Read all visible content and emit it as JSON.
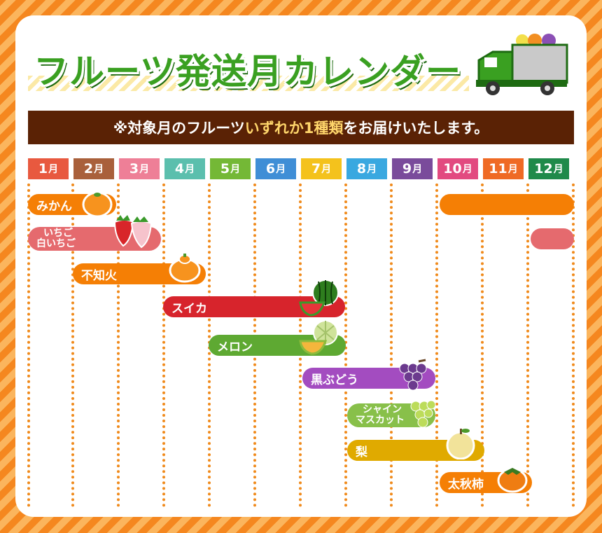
{
  "title": "フルーツ発送月カレンダー",
  "banner": {
    "prefix": "※対象月のフルーツ",
    "highlight": "いずれか1種類",
    "suffix": "をお届けいたします。"
  },
  "months": [
    {
      "num": "1",
      "unit": "月",
      "color": "#e8593f"
    },
    {
      "num": "2",
      "unit": "月",
      "color": "#a9603b"
    },
    {
      "num": "3",
      "unit": "月",
      "color": "#ee7f97"
    },
    {
      "num": "4",
      "unit": "月",
      "color": "#5bbfad"
    },
    {
      "num": "5",
      "unit": "月",
      "color": "#74b836"
    },
    {
      "num": "6",
      "unit": "月",
      "color": "#3f8ed6"
    },
    {
      "num": "7",
      "unit": "月",
      "color": "#f4c21c"
    },
    {
      "num": "8",
      "unit": "月",
      "color": "#39a8e0"
    },
    {
      "num": "9",
      "unit": "月",
      "color": "#7a4b9b"
    },
    {
      "num": "10",
      "unit": "月",
      "color": "#e24a80"
    },
    {
      "num": "11",
      "unit": "月",
      "color": "#ef6a24"
    },
    {
      "num": "12",
      "unit": "月",
      "color": "#1f8a4a"
    }
  ],
  "fruits": [
    {
      "label": "みかん",
      "color": "#f57f05",
      "icon": "mandarin-icon",
      "months": "1–2, 10–12"
    },
    {
      "label1": "いちご",
      "label2": "白いちご",
      "color": "#e56a6e",
      "icon": "strawberry-icon",
      "months": "1–3, 12"
    },
    {
      "label": "不知火",
      "color": "#f57f05",
      "icon": "dekopon-icon",
      "months": "2–4"
    },
    {
      "label": "スイカ",
      "color": "#d7242c",
      "icon": "watermelon-icon",
      "months": "4–7"
    },
    {
      "label": "メロン",
      "color": "#5ea932",
      "icon": "melon-icon",
      "months": "5–7"
    },
    {
      "label": "黒ぶどう",
      "color": "#a34cc0",
      "icon": "black-grape-icon",
      "months": "7–9"
    },
    {
      "label1": "シャイン",
      "label2": "マスカット",
      "color": "#88c04a",
      "icon": "muscat-icon",
      "months": "8–9"
    },
    {
      "label": "梨",
      "color": "#e0aa00",
      "icon": "pear-icon",
      "months": "8–10"
    },
    {
      "label": "太秋柿",
      "color": "#f57f05",
      "icon": "persimmon-icon",
      "months": "10–11"
    }
  ]
}
